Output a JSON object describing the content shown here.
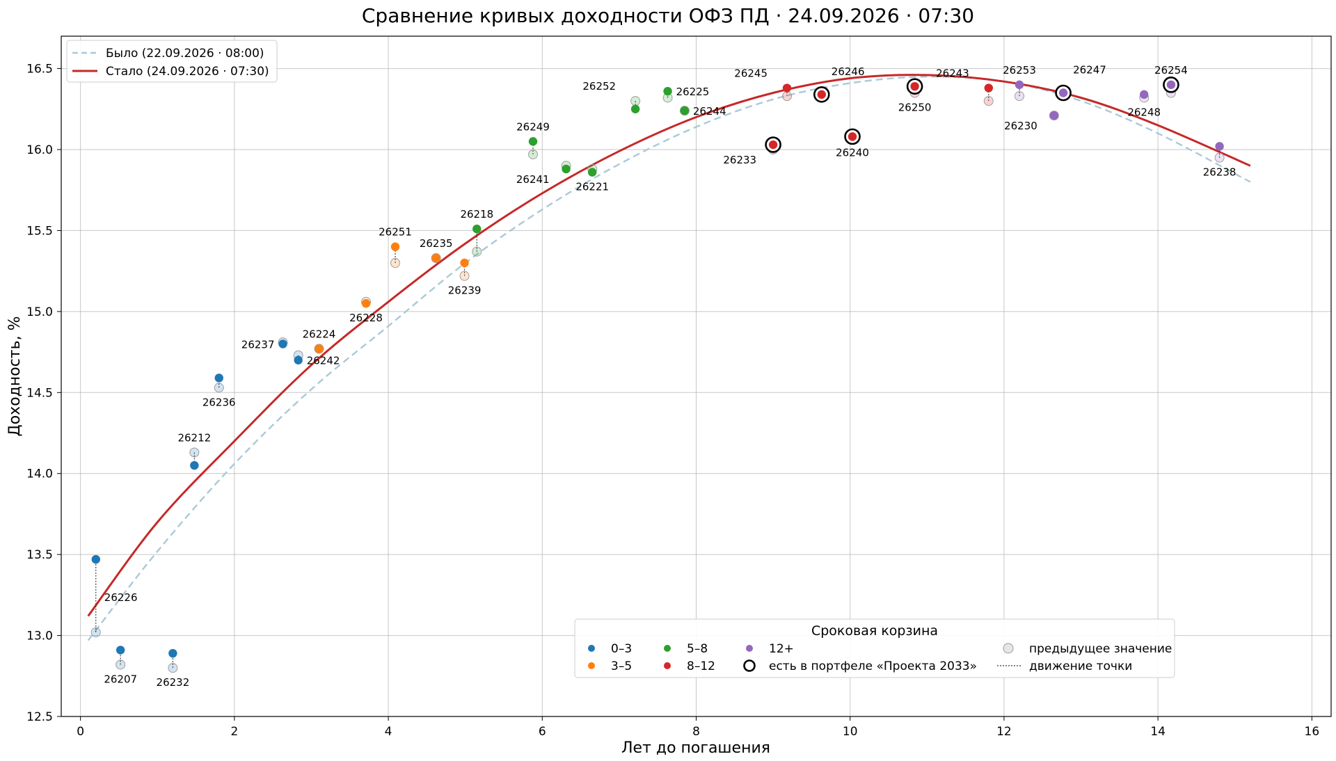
{
  "chart_data": {
    "type": "scatter",
    "title": "Сравнение кривых доходности ОФЗ ПД · 24.09.2026 · 07:30",
    "xlabel": "Лет до погашения",
    "ylabel": "Доходность, %",
    "xlim": [
      -0.25,
      16.25
    ],
    "ylim": [
      12.5,
      16.7
    ],
    "xticks": [
      0,
      2,
      4,
      6,
      8,
      10,
      12,
      14,
      16
    ],
    "yticks": [
      12.5,
      13.0,
      13.5,
      14.0,
      14.5,
      15.0,
      15.5,
      16.0,
      16.5
    ],
    "grid": true,
    "curves": [
      {
        "name": "Было (22.09.2026 · 08:00)",
        "style": "dashed",
        "color": "#a9c9d8",
        "x": [
          0.1,
          1,
          2,
          3,
          4,
          5,
          6,
          7,
          8,
          9,
          10,
          11,
          12,
          13,
          14,
          15.2
        ],
        "y": [
          12.97,
          13.52,
          14.06,
          14.52,
          14.91,
          15.3,
          15.63,
          15.91,
          16.14,
          16.31,
          16.41,
          16.45,
          16.42,
          16.3,
          16.1,
          15.8
        ]
      },
      {
        "name": "Стало (24.09.2026 · 07:30)",
        "style": "solid",
        "color": "#c62828",
        "x": [
          0.1,
          1,
          2,
          3,
          4,
          5,
          6,
          7,
          8,
          9,
          10,
          11,
          12,
          13,
          14,
          15.2
        ],
        "y": [
          13.12,
          13.7,
          14.2,
          14.67,
          15.06,
          15.42,
          15.73,
          15.99,
          16.2,
          16.35,
          16.44,
          16.46,
          16.42,
          16.32,
          16.15,
          15.9
        ]
      }
    ],
    "bonds": [
      {
        "code": "26226",
        "x": 0.2,
        "prev": 13.02,
        "y": 13.47,
        "bucket": "0–3",
        "portfolio": false,
        "label_pos": "below-right"
      },
      {
        "code": "26207",
        "x": 0.52,
        "prev": 12.82,
        "y": 12.91,
        "bucket": "0–3",
        "portfolio": false,
        "label_pos": "below"
      },
      {
        "code": "26232",
        "x": 1.2,
        "prev": 12.8,
        "y": 12.89,
        "bucket": "0–3",
        "portfolio": false,
        "label_pos": "below"
      },
      {
        "code": "26212",
        "x": 1.48,
        "prev": 14.13,
        "y": 14.05,
        "bucket": "0–3",
        "portfolio": false,
        "label_pos": "above"
      },
      {
        "code": "26236",
        "x": 1.8,
        "prev": 14.53,
        "y": 14.59,
        "bucket": "0–3",
        "portfolio": false,
        "label_pos": "below"
      },
      {
        "code": "26237",
        "x": 2.63,
        "prev": 14.81,
        "y": 14.8,
        "bucket": "0–3",
        "portfolio": false,
        "label_pos": "left"
      },
      {
        "code": "26242",
        "x": 2.83,
        "prev": 14.73,
        "y": 14.7,
        "bucket": "0–3",
        "portfolio": false,
        "label_pos": "right"
      },
      {
        "code": "26224",
        "x": 3.1,
        "prev": 14.77,
        "y": 14.77,
        "bucket": "3–5",
        "portfolio": false,
        "label_pos": "above"
      },
      {
        "code": "26228",
        "x": 3.71,
        "prev": 15.06,
        "y": 15.05,
        "bucket": "3–5",
        "portfolio": false,
        "label_pos": "below"
      },
      {
        "code": "26251",
        "x": 4.09,
        "prev": 15.3,
        "y": 15.4,
        "bucket": "3–5",
        "portfolio": false,
        "label_pos": "above"
      },
      {
        "code": "26235",
        "x": 4.62,
        "prev": 15.33,
        "y": 15.33,
        "bucket": "3–5",
        "portfolio": false,
        "label_pos": "above"
      },
      {
        "code": "26239",
        "x": 4.99,
        "prev": 15.22,
        "y": 15.3,
        "bucket": "3–5",
        "portfolio": false,
        "label_pos": "below"
      },
      {
        "code": "26218",
        "x": 5.15,
        "prev": 15.37,
        "y": 15.51,
        "bucket": "5–8",
        "portfolio": false,
        "label_pos": "above"
      },
      {
        "code": "26249",
        "x": 5.88,
        "prev": 15.97,
        "y": 16.05,
        "bucket": "5–8",
        "portfolio": false,
        "label_pos": "above"
      },
      {
        "code": "26241",
        "x": 6.31,
        "prev": 15.9,
        "y": 15.88,
        "bucket": "5–8",
        "portfolio": false,
        "label_pos": "below-left"
      },
      {
        "code": "26221",
        "x": 6.65,
        "prev": 15.88,
        "y": 15.86,
        "bucket": "5–8",
        "portfolio": false,
        "label_pos": "below"
      },
      {
        "code": "26252",
        "x": 7.21,
        "prev": 16.3,
        "y": 16.25,
        "bucket": "5–8",
        "portfolio": false,
        "label_pos": "above-left"
      },
      {
        "code": "26225",
        "x": 7.63,
        "prev": 16.32,
        "y": 16.36,
        "bucket": "5–8",
        "portfolio": false,
        "label_pos": "right"
      },
      {
        "code": "26244",
        "x": 7.85,
        "prev": 16.24,
        "y": 16.24,
        "bucket": "5–8",
        "portfolio": false,
        "label_pos": "right"
      },
      {
        "code": "26233",
        "x": 9.0,
        "prev": 16.0,
        "y": 16.03,
        "bucket": "8–12",
        "portfolio": true,
        "label_pos": "below-left"
      },
      {
        "code": "26245",
        "x": 9.18,
        "prev": 16.33,
        "y": 16.38,
        "bucket": "8–12",
        "portfolio": false,
        "label_pos": "above-left"
      },
      {
        "code": "26246",
        "x": 9.63,
        "prev": 16.33,
        "y": 16.34,
        "bucket": "8–12",
        "portfolio": true,
        "label_pos": "above-right"
      },
      {
        "code": "26240",
        "x": 10.03,
        "prev": 16.07,
        "y": 16.08,
        "bucket": "8–12",
        "portfolio": true,
        "label_pos": "below"
      },
      {
        "code": "26250",
        "x": 10.84,
        "prev": 16.35,
        "y": 16.39,
        "bucket": "8–12",
        "portfolio": true,
        "label_pos": "below"
      },
      {
        "code": "26243",
        "x": 11.8,
        "prev": 16.3,
        "y": 16.38,
        "bucket": "8–12",
        "portfolio": false,
        "label_pos": "above-left"
      },
      {
        "code": "26253",
        "x": 12.2,
        "prev": 16.33,
        "y": 16.4,
        "bucket": "12+",
        "portfolio": false,
        "label_pos": "above"
      },
      {
        "code": "26230",
        "x": 12.65,
        "prev": 16.21,
        "y": 16.21,
        "bucket": "12+",
        "portfolio": false,
        "label_pos": "below-left"
      },
      {
        "code": "26247",
        "x": 12.77,
        "prev": 16.35,
        "y": 16.35,
        "bucket": "12+",
        "portfolio": true,
        "label_pos": "above-right"
      },
      {
        "code": "26248",
        "x": 13.82,
        "prev": 16.32,
        "y": 16.34,
        "bucket": "12+",
        "portfolio": false,
        "label_pos": "below"
      },
      {
        "code": "26254",
        "x": 14.17,
        "prev": 16.35,
        "y": 16.4,
        "bucket": "12+",
        "portfolio": true,
        "label_pos": "above"
      },
      {
        "code": "26238",
        "x": 14.8,
        "prev": 15.95,
        "y": 16.02,
        "bucket": "12+",
        "portfolio": false,
        "label_pos": "below"
      }
    ],
    "legend_title": "Сроковая корзина",
    "legend_placement": "lower-center",
    "buckets": [
      {
        "name": "0–3",
        "color": "#1f77b4"
      },
      {
        "name": "3–5",
        "color": "#ff7f0e"
      },
      {
        "name": "5–8",
        "color": "#2ca02c"
      },
      {
        "name": "8–12",
        "color": "#d62728"
      },
      {
        "name": "12+",
        "color": "#9467bd"
      }
    ],
    "legend_extra": {
      "portfolio": "есть в портфеле «Проекта 2033»",
      "previous": "предыдущее значение",
      "movement": "движение точки"
    }
  }
}
